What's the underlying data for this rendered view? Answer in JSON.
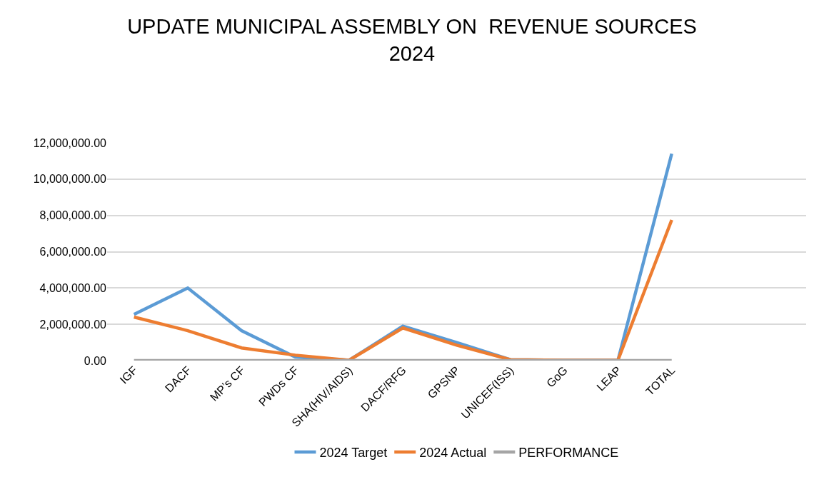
{
  "chart_data": {
    "type": "line",
    "title": "UPDATE MUNICIPAL ASSEMBLY ON  REVENUE SOURCES\n2024",
    "categories": [
      "IGF",
      "DACF",
      "MP’s CF",
      "PWDs CF",
      "SHA(HIV/AIDS)",
      "DACF/RFG",
      "GPSNP",
      "UNICEF(ISS)",
      "GoG",
      "LEAP",
      "TOTAL",
      null,
      null
    ],
    "series": [
      {
        "name": "2024 Target",
        "color": "#5b9bd5",
        "values": [
          2550000,
          4000000,
          1650000,
          200000,
          20000,
          1900000,
          1000000,
          50000,
          20000,
          20000,
          11400000,
          null,
          null
        ]
      },
      {
        "name": "2024 Actual",
        "color": "#ed7d31",
        "values": [
          2400000,
          1650000,
          700000,
          300000,
          20000,
          1800000,
          850000,
          50000,
          20000,
          20000,
          7750000,
          null,
          null
        ]
      },
      {
        "name": "PERFORMANCE",
        "color": "#a5a5a5",
        "values": [
          0,
          0,
          0,
          0,
          0,
          0,
          0,
          0,
          0,
          0,
          0,
          null,
          null
        ]
      }
    ],
    "ylim": [
      0,
      12000000
    ],
    "yticks": [
      {
        "value": 0,
        "label": "0.00"
      },
      {
        "value": 2000000,
        "label": "2,000,000.00"
      },
      {
        "value": 4000000,
        "label": "4,000,000.00"
      },
      {
        "value": 6000000,
        "label": "6,000,000.00"
      },
      {
        "value": 8000000,
        "label": "8,000,000.00"
      },
      {
        "value": 10000000,
        "label": "10,000,000.00"
      },
      {
        "value": 12000000,
        "label": "12,000,000.00"
      }
    ],
    "grid": "y",
    "legend": "bottom",
    "marker": "none",
    "line_style": "solid"
  }
}
